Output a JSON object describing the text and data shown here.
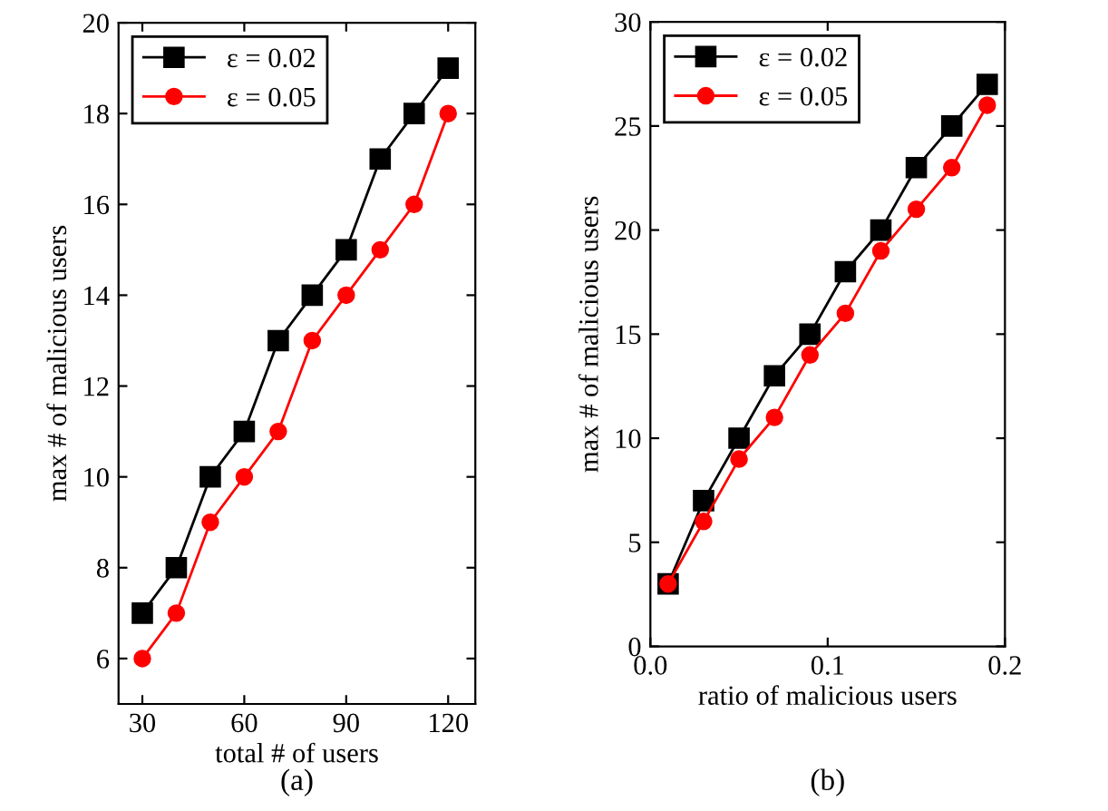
{
  "chart_data": [
    {
      "type": "line",
      "xlabel": "total # of users",
      "ylabel": "max # of malicious users",
      "x": [
        30,
        40,
        50,
        60,
        70,
        80,
        90,
        100,
        110,
        120
      ],
      "xlim": [
        23,
        128
      ],
      "xticks": [
        30,
        60,
        90,
        120
      ],
      "ylim": [
        5,
        20
      ],
      "yticks": [
        6,
        8,
        10,
        12,
        14,
        16,
        18,
        20
      ],
      "legend": "top left",
      "grid": false,
      "annotations": [
        "(a)"
      ],
      "series": [
        {
          "name": "ε = 0.02",
          "color": "#000000",
          "marker": "square",
          "values": [
            7,
            8,
            10,
            11,
            13,
            14,
            15,
            17,
            18,
            19
          ]
        },
        {
          "name": "ε = 0.05",
          "color": "#ff0000",
          "marker": "circle",
          "values": [
            6,
            7,
            9,
            10,
            11,
            13,
            14,
            15,
            16,
            18
          ]
        }
      ]
    },
    {
      "type": "line",
      "xlabel": "ratio of malicious users",
      "ylabel": "max # of malicious users",
      "x": [
        0.01,
        0.03,
        0.05,
        0.07,
        0.09,
        0.11,
        0.13,
        0.15,
        0.17,
        0.19
      ],
      "xlim": [
        0,
        0.2
      ],
      "xticks": [
        {
          "value": 0,
          "label": "0.0"
        },
        0.1,
        0.2
      ],
      "ylim": [
        0,
        30
      ],
      "yticks": [
        0,
        5,
        10,
        15,
        20,
        25,
        30
      ],
      "legend": "top left",
      "grid": false,
      "annotations": [
        "(b)"
      ],
      "series": [
        {
          "name": "ε = 0.02",
          "color": "#000000",
          "marker": "square",
          "values": [
            3,
            7,
            10,
            13,
            15,
            18,
            20,
            23,
            25,
            27
          ]
        },
        {
          "name": "ε = 0.05",
          "color": "#ff0000",
          "marker": "circle",
          "values": [
            3,
            6,
            9,
            11,
            14,
            16,
            19,
            21,
            23,
            26
          ]
        }
      ]
    }
  ]
}
